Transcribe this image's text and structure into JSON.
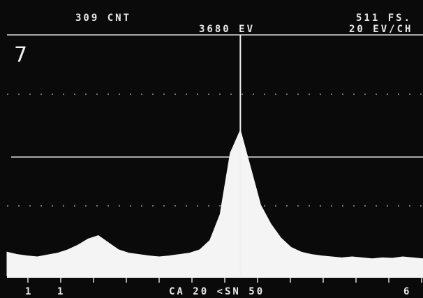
{
  "chart_data": {
    "type": "area",
    "figure_label": "7",
    "count_label": "309 CNT",
    "cursor_label": "3680 EV",
    "scale_label": "511 FS.",
    "channel_label": "20 EV/CH",
    "bottom_labels": [
      "1",
      "1",
      "CA 20 <SN 50",
      "6"
    ],
    "cursor": 3680,
    "color": "#f4f4f4",
    "xlim": [
      0,
      6560
    ],
    "ylim": [
      0,
      511
    ],
    "x": [
      0,
      160,
      320,
      480,
      640,
      800,
      960,
      1120,
      1280,
      1440,
      1600,
      1760,
      1920,
      2080,
      2240,
      2400,
      2560,
      2720,
      2880,
      3040,
      3200,
      3360,
      3520,
      3680,
      3840,
      4000,
      4160,
      4320,
      4480,
      4640,
      4800,
      4960,
      5120,
      5280,
      5440,
      5600,
      5760,
      5920,
      6080,
      6240,
      6400,
      6560
    ],
    "values": [
      50,
      45,
      42,
      40,
      44,
      48,
      55,
      65,
      78,
      85,
      70,
      55,
      48,
      45,
      42,
      40,
      42,
      45,
      48,
      55,
      75,
      130,
      260,
      309,
      230,
      150,
      110,
      80,
      60,
      50,
      45,
      42,
      40,
      38,
      40,
      38,
      36,
      38,
      37,
      40,
      38,
      36
    ]
  }
}
